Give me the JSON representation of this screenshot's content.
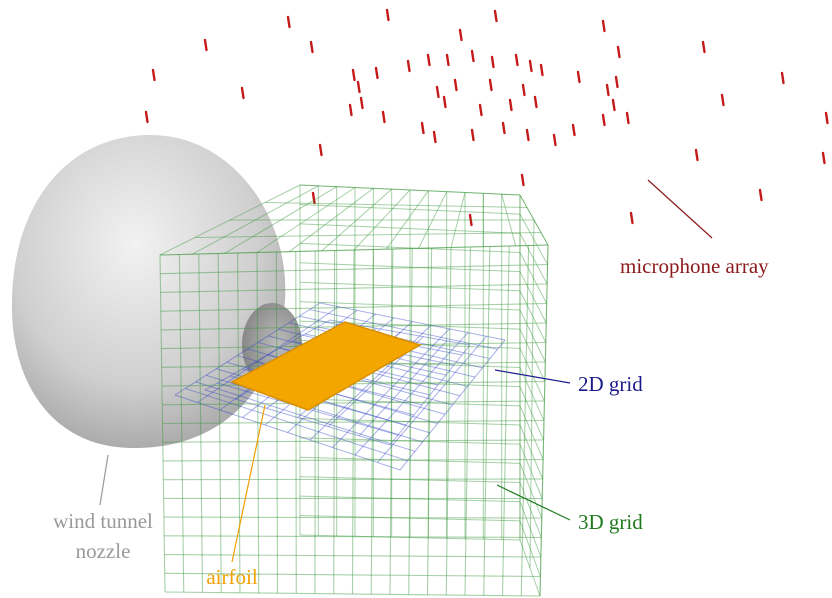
{
  "labels": {
    "microphone_array": "microphone array",
    "grid_2d": "2D grid",
    "grid_3d": "3D grid",
    "nozzle": [
      "wind tunnel",
      "nozzle"
    ],
    "airfoil": "airfoil"
  }
}
